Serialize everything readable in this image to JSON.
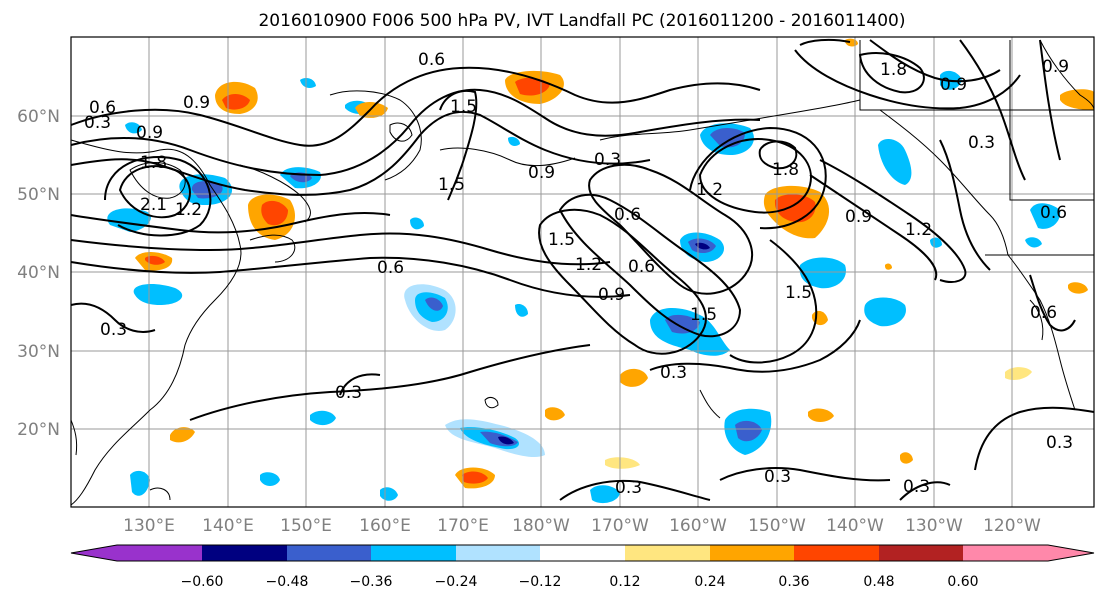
{
  "title": "2016010900 F006 500 hPa PV, IVT Landfall PC (2016011200 - 2016011400)",
  "lat_labels": [
    "60°N",
    "50°N",
    "40°N",
    "30°N",
    "20°N"
  ],
  "lon_labels": [
    "130°E",
    "140°E",
    "150°E",
    "160°E",
    "170°E",
    "180°W",
    "170°W",
    "160°W",
    "150°W",
    "140°W",
    "130°W",
    "120°W"
  ],
  "colorbar": {
    "ticks": [
      "−0.60",
      "−0.48",
      "−0.36",
      "−0.24",
      "−0.12",
      "0.12",
      "0.24",
      "0.36",
      "0.48",
      "0.60"
    ],
    "colors": [
      "#9932cc",
      "#000080",
      "#3a5fcd",
      "#00bfff",
      "#b0e2ff",
      "#ffffff",
      "#ffe680",
      "#ffa500",
      "#ff4500",
      "#b22222",
      "#ff88aa"
    ]
  },
  "contour_labels": [
    "0.6",
    "0.9",
    "1.5",
    "0.3",
    "0.6",
    "0.9",
    "1.8",
    "2.1",
    "1.2",
    "1.5",
    "0.9",
    "0.6",
    "1.2",
    "1.5",
    "0.3",
    "0.6",
    "0.9",
    "1.2",
    "1.8",
    "1.5",
    "0.9",
    "0.6",
    "1.8",
    "0.9",
    "0.3",
    "1.2",
    "0.3",
    "0.3",
    "0.3",
    "0.3",
    "0.3",
    "0.3",
    "0.9",
    "0.6",
    "1.5",
    "0.6",
    "0.3"
  ],
  "legend_icons": {
    "left": "triangle-left-icon",
    "right": "triangle-right-icon"
  }
}
